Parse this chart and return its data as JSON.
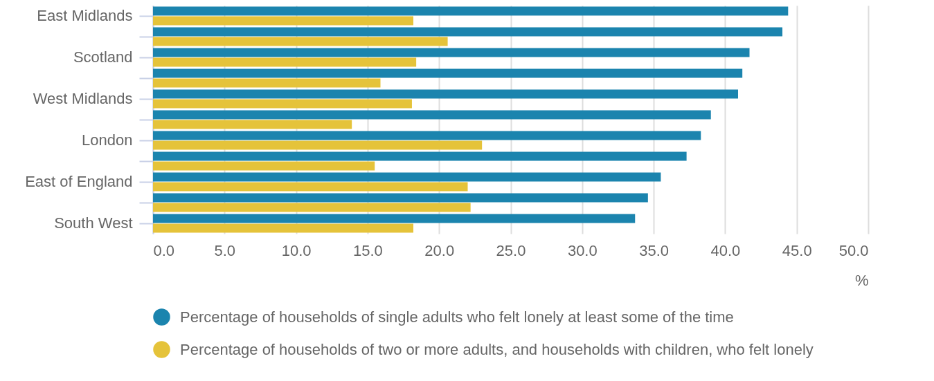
{
  "chart_data": {
    "type": "bar",
    "orientation": "horizontal",
    "categories": [
      "East Midlands",
      null,
      "Scotland",
      null,
      "West Midlands",
      null,
      "London",
      null,
      "East of England",
      null,
      "South West"
    ],
    "series": [
      {
        "name": "Percentage of households of single adults who felt lonely at least some of the time",
        "color": "#1b84ae",
        "values": [
          44.4,
          44.0,
          41.7,
          41.2,
          40.9,
          39.0,
          38.3,
          37.3,
          35.5,
          34.6,
          33.7
        ]
      },
      {
        "name": "Percentage of households of two or more adults, and households with children, who felt lonely",
        "color": "#e5c33a",
        "values": [
          18.2,
          20.6,
          18.4,
          15.9,
          18.1,
          13.9,
          23.0,
          15.5,
          22.0,
          22.2,
          18.2
        ]
      }
    ],
    "xlabel": "%",
    "xlim": [
      0,
      50
    ],
    "xticks": [
      {
        "value": 0,
        "label": "0.0"
      },
      {
        "value": 5,
        "label": "5.0"
      },
      {
        "value": 10,
        "label": "10.0"
      },
      {
        "value": 15,
        "label": "15.0"
      },
      {
        "value": 20,
        "label": "20.0"
      },
      {
        "value": 25,
        "label": "25.0"
      },
      {
        "value": 30,
        "label": "30.0"
      },
      {
        "value": 35,
        "label": "35.0"
      },
      {
        "value": 40,
        "label": "40.0"
      },
      {
        "value": 45,
        "label": "45.0"
      },
      {
        "value": 50,
        "label": "50.0"
      }
    ],
    "grid": "x",
    "legend": "bottom"
  }
}
